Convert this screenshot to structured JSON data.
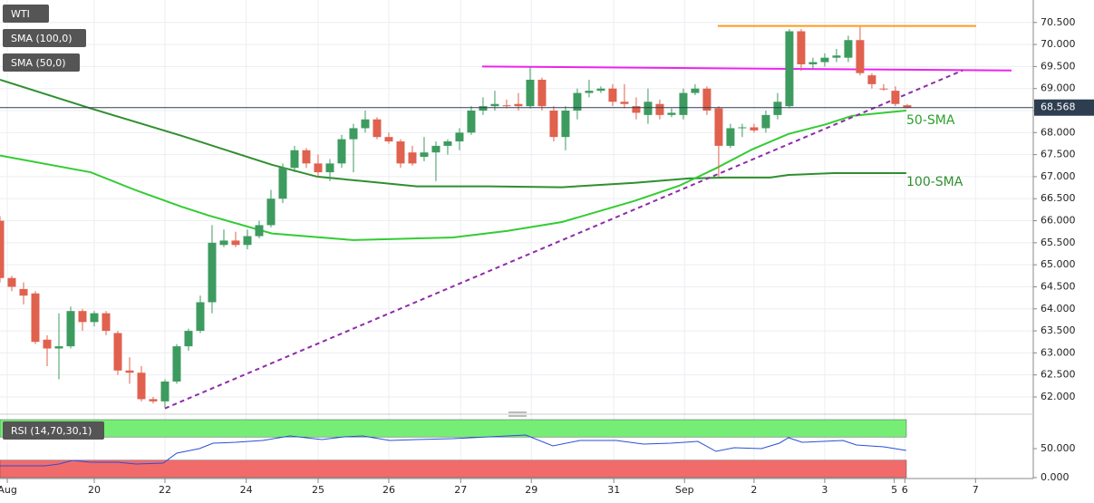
{
  "chart_data": [
    {
      "type": "candlestick",
      "title": "WTI",
      "x": [
        0,
        1,
        2,
        3,
        4,
        5,
        6,
        7,
        8,
        9,
        10,
        11,
        12,
        13,
        14,
        15,
        16,
        17,
        18,
        19,
        20,
        21,
        22,
        23,
        24,
        25,
        26,
        27,
        28,
        29,
        30,
        31,
        32,
        33,
        34,
        35,
        36,
        37,
        38,
        39,
        40,
        41,
        42,
        43,
        44,
        45,
        46,
        47,
        48,
        49,
        50,
        51,
        52,
        53,
        54,
        55,
        56,
        57,
        58,
        59,
        60,
        61,
        62,
        63,
        64,
        65,
        66,
        67,
        68,
        69,
        70,
        71,
        72,
        73,
        74,
        75,
        76,
        77
      ],
      "open": [
        66.0,
        64.7,
        64.45,
        64.35,
        63.3,
        63.1,
        63.15,
        63.95,
        63.7,
        63.9,
        63.45,
        62.6,
        62.55,
        61.95,
        61.9,
        62.35,
        63.15,
        63.5,
        64.15,
        65.45,
        65.55,
        65.45,
        65.65,
        65.9,
        66.5,
        67.2,
        67.6,
        67.3,
        67.1,
        67.3,
        67.85,
        68.1,
        68.3,
        67.9,
        67.8,
        67.55,
        67.45,
        67.55,
        67.7,
        67.8,
        68.0,
        68.5,
        68.6,
        68.62,
        68.65,
        68.6,
        69.2,
        68.5,
        67.9,
        68.5,
        68.9,
        68.95,
        69.0,
        68.7,
        68.6,
        68.4,
        68.65,
        68.4,
        68.4,
        68.9,
        69.0,
        68.55,
        67.7,
        68.1,
        68.12,
        68.1,
        68.4,
        68.6,
        70.3,
        69.55,
        69.6,
        69.7,
        69.7,
        70.1,
        69.3,
        69.0,
        68.95,
        68.62
      ],
      "high": [
        66.1,
        64.75,
        64.6,
        64.4,
        63.4,
        63.9,
        64.05,
        64.0,
        63.95,
        63.95,
        63.5,
        62.9,
        62.7,
        62.0,
        62.4,
        63.2,
        63.55,
        64.3,
        65.9,
        65.8,
        65.75,
        65.8,
        66.0,
        66.7,
        67.3,
        67.7,
        67.65,
        67.5,
        67.4,
        67.95,
        68.2,
        68.5,
        68.35,
        68.0,
        67.85,
        67.7,
        67.9,
        67.8,
        67.85,
        68.1,
        68.6,
        68.8,
        68.95,
        68.75,
        68.9,
        69.5,
        69.25,
        68.6,
        68.6,
        69.0,
        69.2,
        69.05,
        69.1,
        69.1,
        68.8,
        69.0,
        68.75,
        68.55,
        69.0,
        69.1,
        69.05,
        68.6,
        68.2,
        68.2,
        68.2,
        68.5,
        68.9,
        70.35,
        70.35,
        69.7,
        69.8,
        69.9,
        70.2,
        70.4,
        69.35,
        69.1,
        69.05,
        68.65
      ],
      "low": [
        64.6,
        64.4,
        64.1,
        63.2,
        62.7,
        62.4,
        63.1,
        63.5,
        63.6,
        63.4,
        62.5,
        62.3,
        61.9,
        61.85,
        61.75,
        62.3,
        63.05,
        63.45,
        63.9,
        65.4,
        65.4,
        65.35,
        65.6,
        65.85,
        66.4,
        67.1,
        67.2,
        67.0,
        66.9,
        67.2,
        67.1,
        68.0,
        67.85,
        67.75,
        67.2,
        67.25,
        67.35,
        66.9,
        67.5,
        67.6,
        67.95,
        68.4,
        68.5,
        68.55,
        68.5,
        68.55,
        68.5,
        67.8,
        67.6,
        68.3,
        68.8,
        68.9,
        68.6,
        68.55,
        68.3,
        68.2,
        68.3,
        68.35,
        68.3,
        68.85,
        68.4,
        67.0,
        67.65,
        67.9,
        68.0,
        68.0,
        68.3,
        68.55,
        69.4,
        69.45,
        69.5,
        69.6,
        69.6,
        69.3,
        69.0,
        68.95,
        68.6,
        68.55
      ],
      "close": [
        64.7,
        64.5,
        64.3,
        63.25,
        63.1,
        63.15,
        63.95,
        63.7,
        63.9,
        63.5,
        62.6,
        62.55,
        61.95,
        61.9,
        62.35,
        63.15,
        63.5,
        64.15,
        65.5,
        65.55,
        65.45,
        65.65,
        65.9,
        66.5,
        67.2,
        67.6,
        67.3,
        67.1,
        67.3,
        67.85,
        68.1,
        68.3,
        67.9,
        67.8,
        67.3,
        67.3,
        67.55,
        67.7,
        67.8,
        68.0,
        68.5,
        68.6,
        68.65,
        68.6,
        68.6,
        69.2,
        68.6,
        67.9,
        68.5,
        68.9,
        68.95,
        69.0,
        68.7,
        68.65,
        68.45,
        68.7,
        68.4,
        68.45,
        68.9,
        69.0,
        68.5,
        67.7,
        68.1,
        68.12,
        68.05,
        68.4,
        68.7,
        70.3,
        69.55,
        69.6,
        69.7,
        69.75,
        70.1,
        69.35,
        69.1,
        68.98,
        68.65,
        68.568
      ],
      "up_color": "#3d9b5f",
      "down_color": "#e0614e",
      "last_price": 68.568,
      "xlim": [
        0,
        87.7
      ],
      "ylim": [
        61.65,
        71.01
      ],
      "yticks": [
        {
          "value": 62,
          "label": "62.000"
        },
        {
          "value": 62.5,
          "label": "62.500"
        },
        {
          "value": 63,
          "label": "63.000"
        },
        {
          "value": 63.5,
          "label": "63.500"
        },
        {
          "value": 64,
          "label": "64.000"
        },
        {
          "value": 64.5,
          "label": "64.500"
        },
        {
          "value": 65,
          "label": "65.000"
        },
        {
          "value": 65.5,
          "label": "65.500"
        },
        {
          "value": 66,
          "label": "66.000"
        },
        {
          "value": 66.5,
          "label": "66.500"
        },
        {
          "value": 67,
          "label": "67.000"
        },
        {
          "value": 67.5,
          "label": "67.500"
        },
        {
          "value": 68,
          "label": "68.000"
        },
        {
          "value": 68.5,
          "label": "68.500"
        },
        {
          "value": 69,
          "label": "69.000"
        },
        {
          "value": 69.5,
          "label": "69.500"
        },
        {
          "value": 70,
          "label": "70.000"
        },
        {
          "value": 70.5,
          "label": "70.500"
        }
      ],
      "xticks": [
        {
          "value": 0.62,
          "label": "Aug"
        },
        {
          "value": 8.0,
          "label": "20"
        },
        {
          "value": 14.0,
          "label": "22"
        },
        {
          "value": 20.9,
          "label": "24"
        },
        {
          "value": 27.0,
          "label": "25"
        },
        {
          "value": 33.0,
          "label": "26"
        },
        {
          "value": 39.1,
          "label": "27"
        },
        {
          "value": 45.1,
          "label": "29"
        },
        {
          "value": 52.1,
          "label": "31"
        },
        {
          "value": 58.1,
          "label": "Sep"
        },
        {
          "value": 64.0,
          "label": "2"
        },
        {
          "value": 70.0,
          "label": "3"
        },
        {
          "value": 75.9,
          "label": "5"
        },
        {
          "value": 76.8,
          "label": "6"
        },
        {
          "value": 82.8,
          "label": "7"
        }
      ],
      "grid": true,
      "series": [
        {
          "name": "SMA (100,0)",
          "label": "100-SMA",
          "color": "#2f8f2f",
          "x": [
            0,
            7.69,
            15.38,
            23.08,
            26.92,
            30.77,
            35.38,
            41.54,
            47.69,
            53.85,
            58.46,
            61.54,
            65.38,
            66.92,
            70.77,
            76.92
          ],
          "values": [
            69.2,
            68.55,
            67.93,
            67.27,
            67.0,
            66.9,
            66.78,
            66.78,
            66.76,
            66.86,
            66.96,
            66.98,
            66.98,
            67.04,
            67.08,
            67.08
          ]
        },
        {
          "name": "SMA (50,0)",
          "label": "50-SMA",
          "color": "#33cc33",
          "x": [
            0,
            7.69,
            11.54,
            15.38,
            17.69,
            23.08,
            30,
            38.46,
            43.08,
            47.69,
            53.85,
            57.69,
            60.77,
            63.85,
            66.92,
            70,
            72.31,
            76.92
          ],
          "values": [
            67.48,
            67.1,
            66.69,
            66.32,
            66.12,
            65.71,
            65.56,
            65.62,
            65.77,
            65.97,
            66.45,
            66.8,
            67.19,
            67.62,
            67.97,
            68.18,
            68.38,
            68.5
          ]
        }
      ],
      "lines": [
        {
          "color": "#ff9a1f",
          "x": [
            60.92,
            82.85
          ],
          "values": [
            70.42,
            70.42
          ]
        },
        {
          "color": "#ee22ee",
          "x": [
            40.92,
            85.85
          ],
          "values": [
            69.5,
            69.41
          ]
        },
        {
          "color": "#8e2ba8",
          "dashed": true,
          "x": [
            14.0,
            81.69
          ],
          "values": [
            61.74,
            69.41
          ]
        }
      ]
    },
    {
      "type": "line",
      "title": "RSI (14,70,30,1)",
      "color": "#2a4fd6",
      "x": [
        0,
        3.85,
        5,
        6.15,
        7.69,
        10,
        11.54,
        13.85,
        15,
        16.92,
        18.08,
        20,
        22.31,
        24.62,
        27.31,
        29.23,
        30.77,
        33.08,
        35.38,
        38.46,
        41.54,
        44.62,
        46.92,
        49.23,
        52.31,
        54.62,
        56.92,
        59.23,
        60.77,
        62.31,
        64.62,
        66.15,
        66.92,
        68.08,
        71.54,
        72.69,
        75,
        76.92
      ],
      "values": [
        20.3,
        20.3,
        23.4,
        29.7,
        26.6,
        26.6,
        23.4,
        25,
        42.2,
        50,
        59.4,
        60.9,
        64.1,
        71.9,
        65.6,
        70.3,
        71.9,
        64.1,
        65.6,
        67.2,
        70.3,
        73.4,
        54.7,
        64.1,
        64.1,
        57.8,
        59.4,
        62.5,
        45.3,
        51.6,
        50,
        59.4,
        68.8,
        60.9,
        64.1,
        56.3,
        53.1,
        46.9
      ],
      "xlim": [
        0,
        87.7
      ],
      "ylim": [
        0,
        100
      ],
      "yticks": [
        {
          "value": 0,
          "label": "0.000"
        },
        {
          "value": 50,
          "label": "50.000"
        }
      ],
      "bands": [
        {
          "from": 70,
          "to": 100,
          "color": "#76ee76"
        },
        {
          "from": 0,
          "to": 30,
          "color": "#f26b6b"
        }
      ]
    }
  ]
}
